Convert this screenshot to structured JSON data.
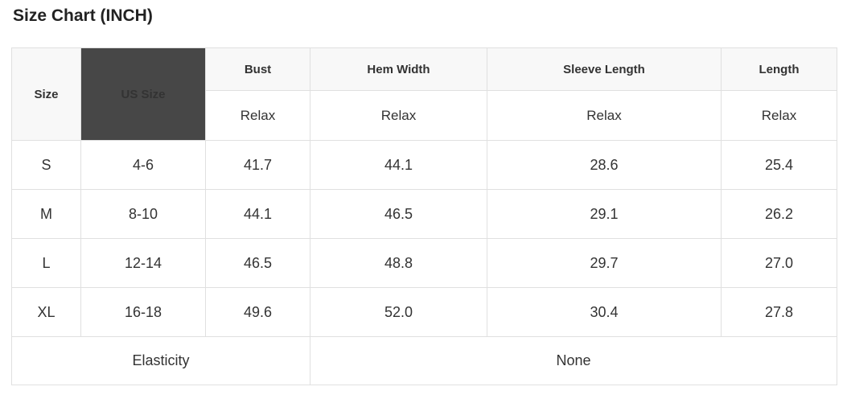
{
  "title": "Size Chart (INCH)",
  "colors": {
    "us_size_header_bg": "#474747",
    "us_size_header_text": "#ffffff",
    "header_bg": "#f8f8f8",
    "border": "#e0e0e0",
    "text": "#333333",
    "title_text": "#222222"
  },
  "table": {
    "corner_header": "Size",
    "us_size_header": "US Size",
    "measure_headers": [
      "Bust",
      "Hem Width",
      "Sleeve Length",
      "Length"
    ],
    "fit_row": [
      "Relax",
      "Relax",
      "Relax",
      "Relax"
    ],
    "rows": [
      {
        "size": "S",
        "us_size": "4-6",
        "bust": "41.7",
        "hem_width": "44.1",
        "sleeve_length": "28.6",
        "length": "25.4"
      },
      {
        "size": "M",
        "us_size": "8-10",
        "bust": "44.1",
        "hem_width": "46.5",
        "sleeve_length": "29.1",
        "length": "26.2"
      },
      {
        "size": "L",
        "us_size": "12-14",
        "bust": "46.5",
        "hem_width": "48.8",
        "sleeve_length": "29.7",
        "length": "27.0"
      },
      {
        "size": "XL",
        "us_size": "16-18",
        "bust": "49.6",
        "hem_width": "52.0",
        "sleeve_length": "30.4",
        "length": "27.8"
      }
    ],
    "footer": {
      "label": "Elasticity",
      "value": "None"
    }
  },
  "chart_data": {
    "type": "table",
    "title": "Size Chart (INCH)",
    "unit": "INCH",
    "columns": [
      "Size",
      "US Size",
      "Bust (Relax)",
      "Hem Width (Relax)",
      "Sleeve Length (Relax)",
      "Length (Relax)"
    ],
    "rows": [
      [
        "S",
        "4-6",
        41.7,
        44.1,
        28.6,
        25.4
      ],
      [
        "M",
        "8-10",
        44.1,
        46.5,
        29.1,
        26.2
      ],
      [
        "L",
        "12-14",
        46.5,
        48.8,
        29.7,
        27.0
      ],
      [
        "XL",
        "16-18",
        49.6,
        52.0,
        30.4,
        27.8
      ]
    ],
    "elasticity": "None"
  }
}
